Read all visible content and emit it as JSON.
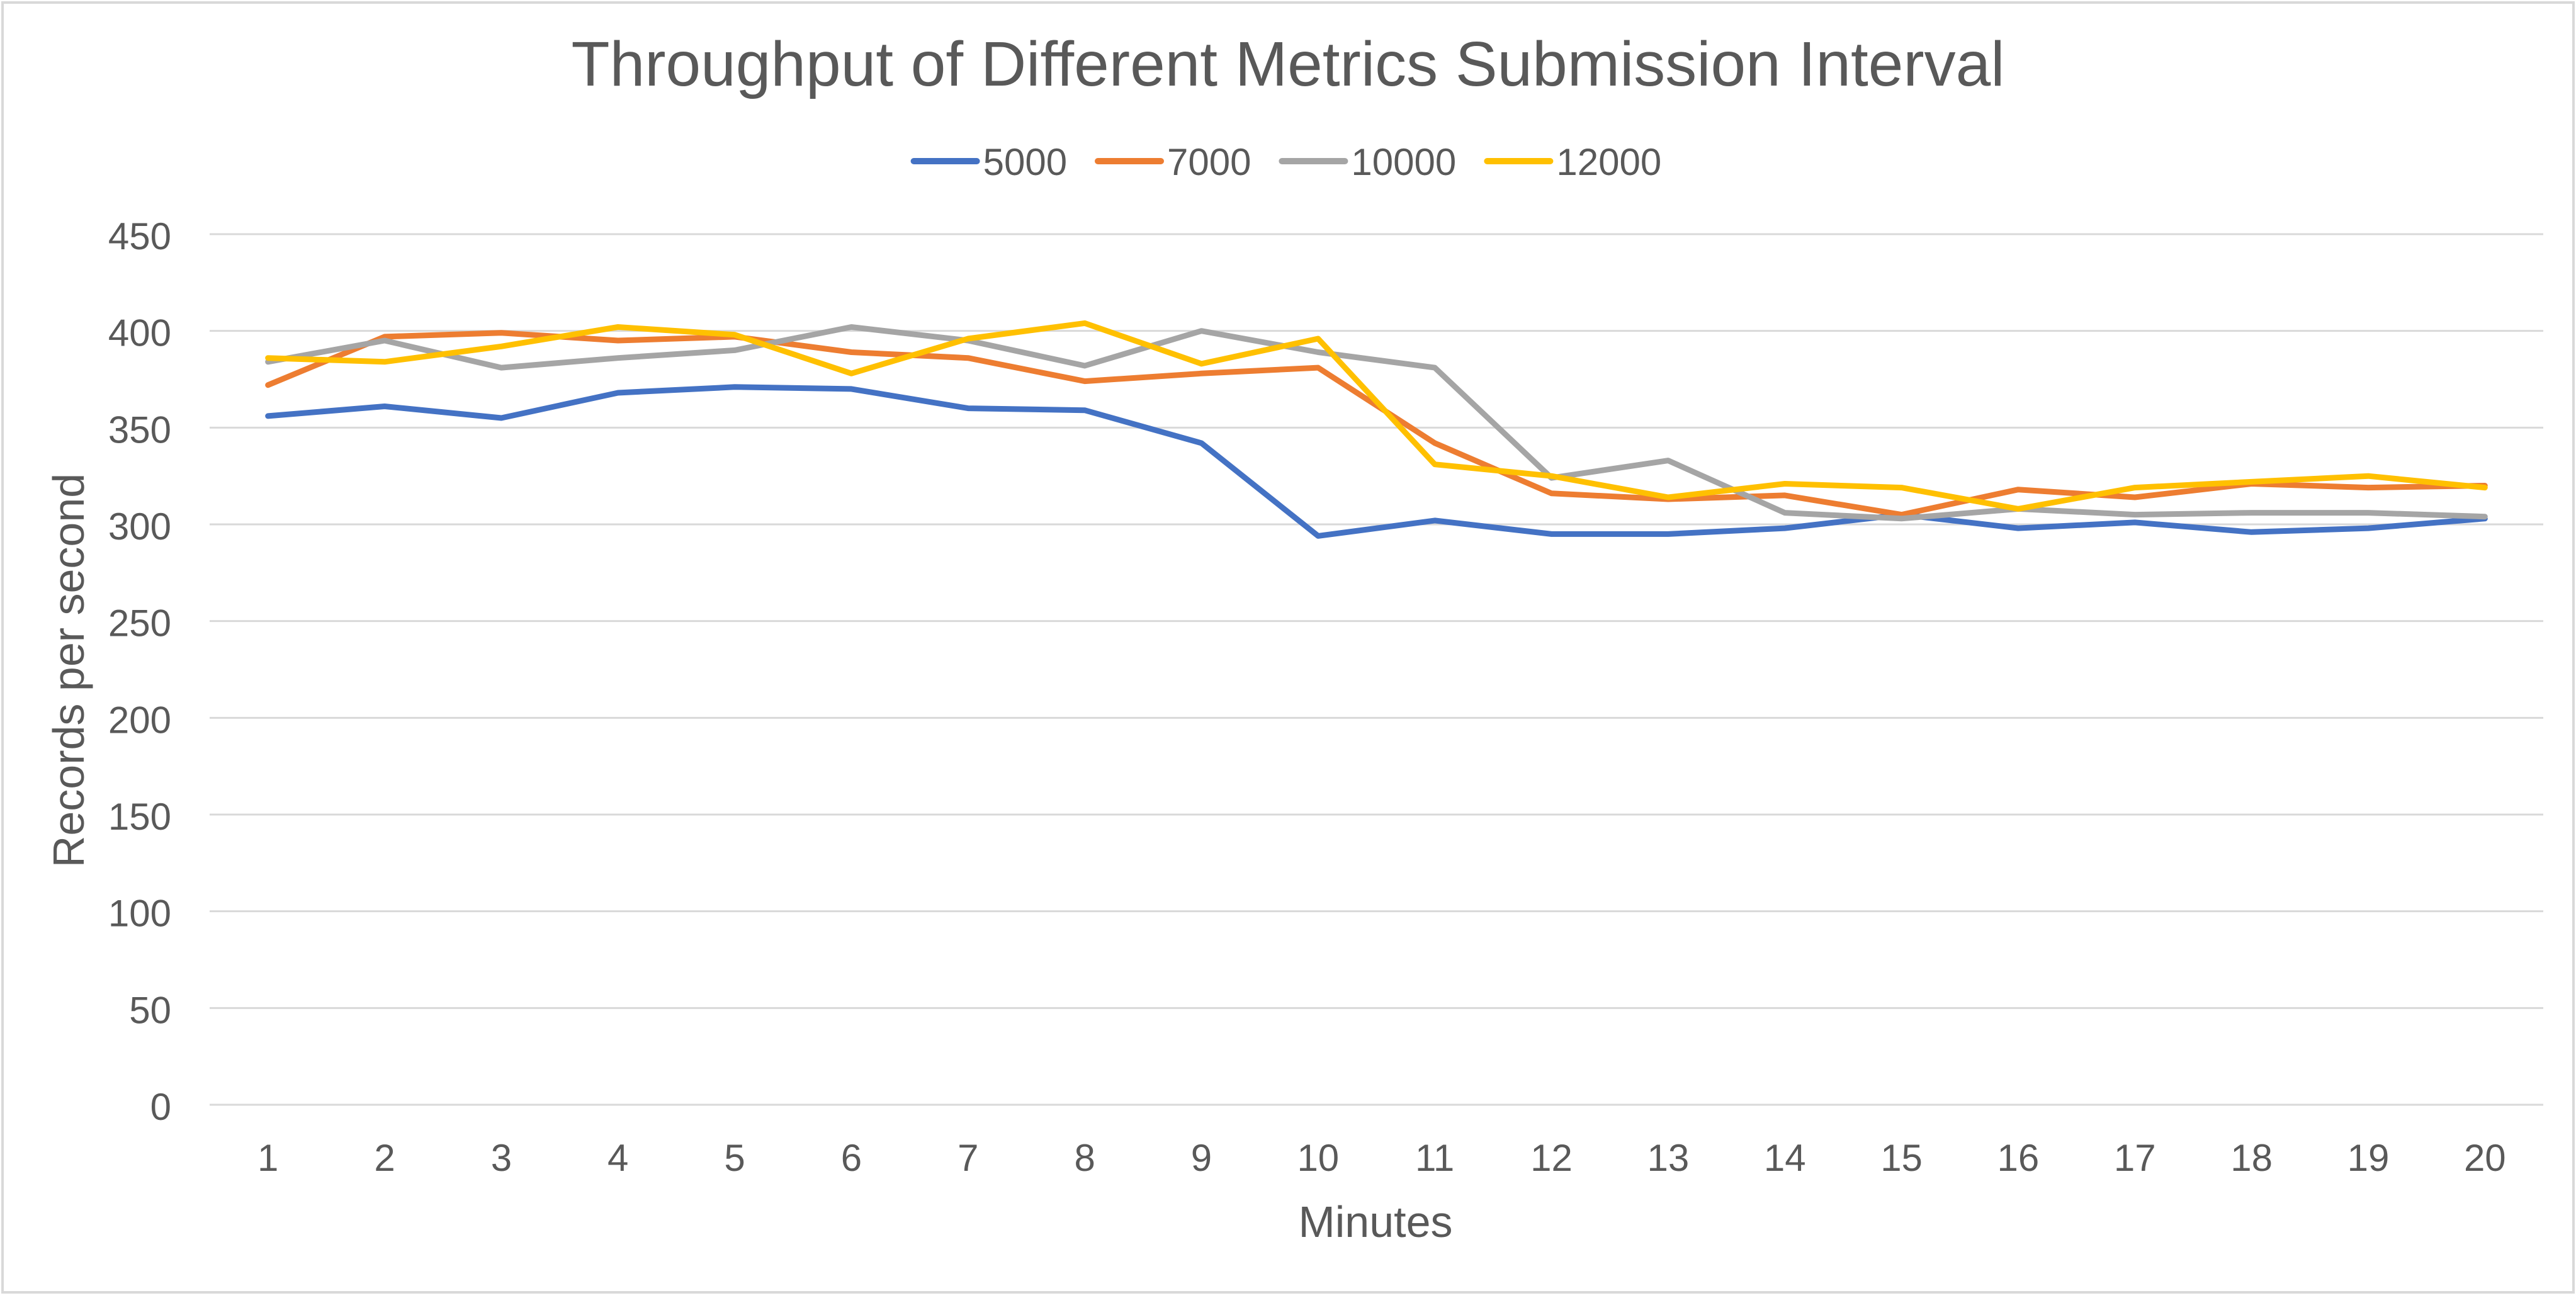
{
  "chart_data": {
    "type": "line",
    "title": "Throughput  of Different Metrics Submission Interval",
    "xlabel": "Minutes",
    "ylabel": "Records per second",
    "ylim": [
      0,
      450
    ],
    "yticks": [
      0,
      50,
      100,
      150,
      200,
      250,
      300,
      350,
      400,
      450
    ],
    "grid": true,
    "legend_position": "top",
    "categories": [
      "1",
      "2",
      "3",
      "4",
      "5",
      "6",
      "7",
      "8",
      "9",
      "10",
      "11",
      "12",
      "13",
      "14",
      "15",
      "16",
      "17",
      "18",
      "19",
      "20"
    ],
    "series": [
      {
        "name": "5000",
        "color": "#4472C4",
        "values": [
          356,
          361,
          355,
          368,
          371,
          370,
          360,
          359,
          342,
          294,
          302,
          295,
          295,
          298,
          305,
          298,
          301,
          296,
          298,
          303
        ]
      },
      {
        "name": "7000",
        "color": "#ED7D31",
        "values": [
          372,
          397,
          399,
          395,
          397,
          389,
          386,
          374,
          378,
          381,
          342,
          316,
          313,
          315,
          305,
          318,
          314,
          321,
          319,
          320
        ]
      },
      {
        "name": "10000",
        "color": "#A5A5A5",
        "values": [
          384,
          395,
          381,
          386,
          390,
          402,
          395,
          382,
          400,
          389,
          381,
          324,
          333,
          306,
          303,
          308,
          305,
          306,
          306,
          304
        ]
      },
      {
        "name": "12000",
        "color": "#FFC000",
        "values": [
          386,
          384,
          392,
          402,
          398,
          378,
          396,
          404,
          383,
          396,
          331,
          325,
          314,
          321,
          319,
          308,
          319,
          322,
          325,
          319
        ]
      }
    ]
  }
}
